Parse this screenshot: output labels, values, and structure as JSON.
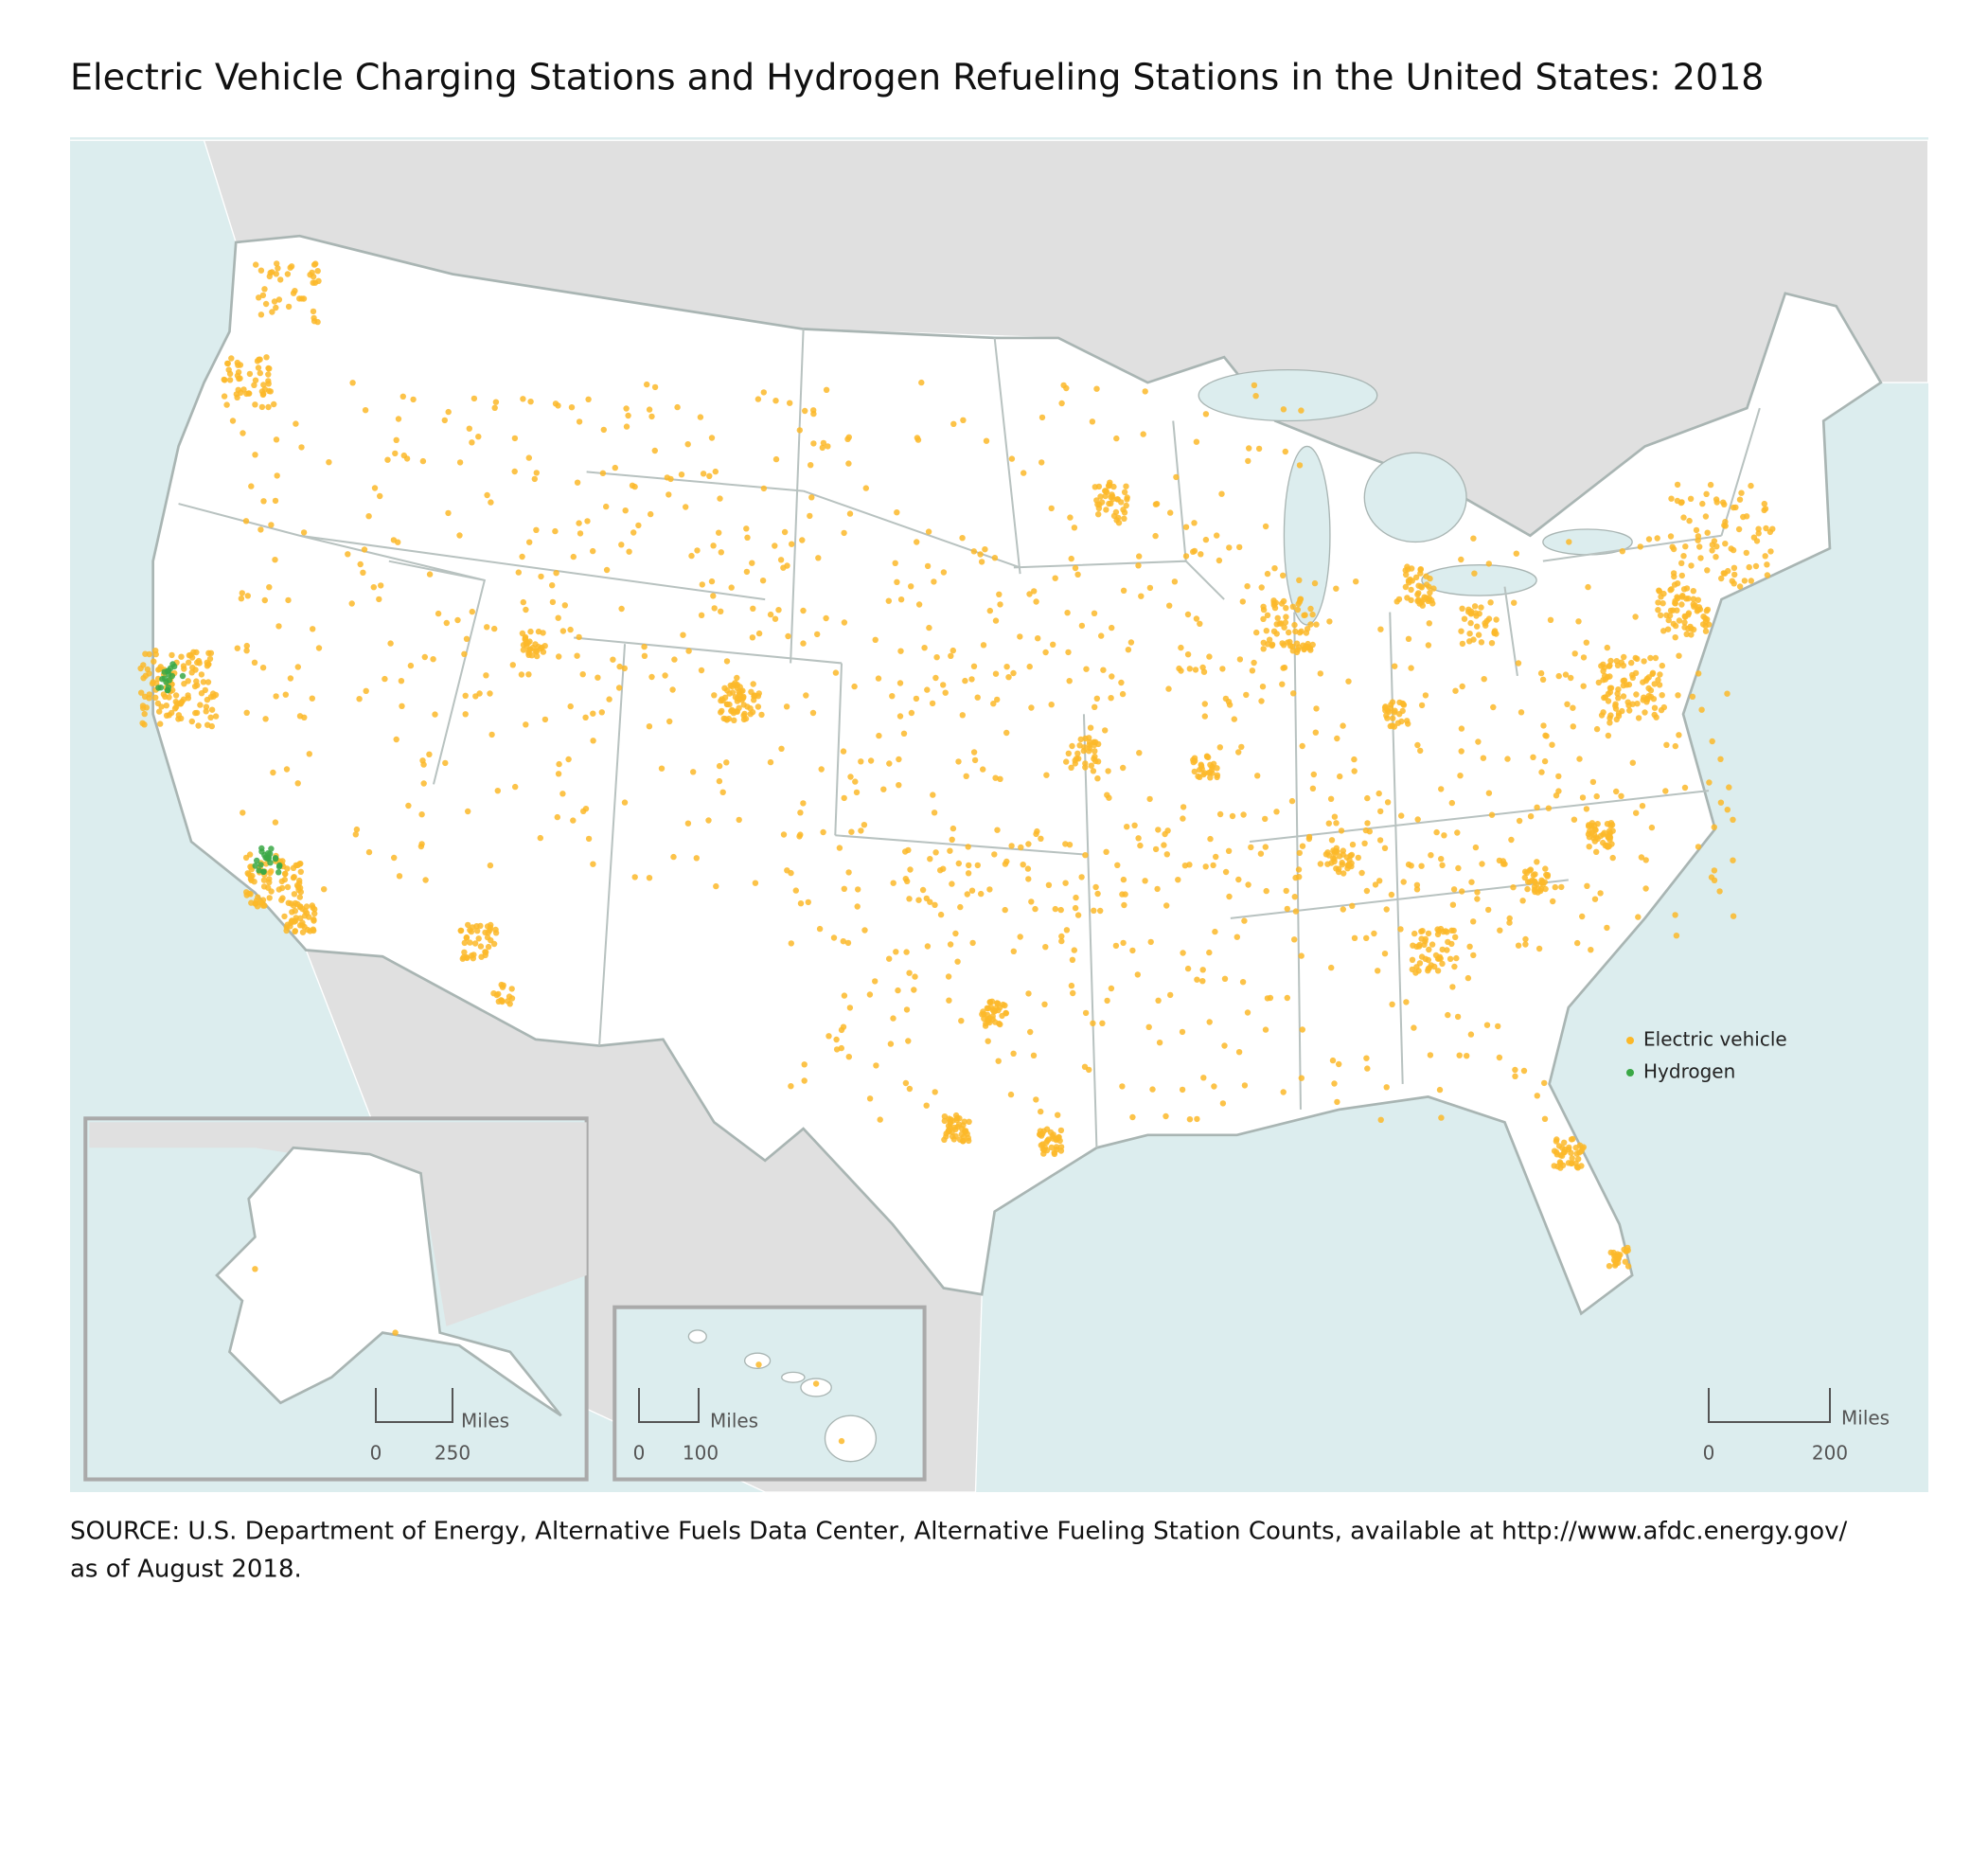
{
  "title": "Electric Vehicle Charging Stations and Hydrogen Refueling Stations in the United States: 2018",
  "legend": [
    {
      "label": "Electric vehicle",
      "color": "#fbb829"
    },
    {
      "label": "Hydrogen",
      "color": "#3aa845"
    }
  ],
  "scale_bars": {
    "alaska": {
      "unit": "Miles",
      "labels": [
        0,
        250
      ]
    },
    "hawaii": {
      "unit": "Miles",
      "labels": [
        0,
        100
      ]
    },
    "main": {
      "unit": "Miles",
      "labels": [
        0,
        200
      ]
    }
  },
  "source": [
    "SOURCE: U.S. Department of Energy, Alternative Fuels Data Center, Alternative Fueling Station Counts, available at http://www.afdc.energy.gov/",
    "as of August 2018."
  ]
}
